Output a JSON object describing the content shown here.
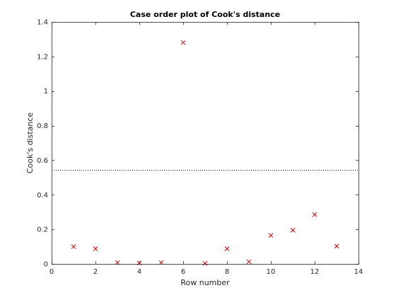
{
  "chart_data": {
    "type": "scatter",
    "title": "Case order plot of Cook's distance",
    "xlabel": "Row number",
    "ylabel": "Cook's distance",
    "xlim": [
      0,
      14
    ],
    "ylim": [
      0,
      1.4
    ],
    "xticks": [
      0,
      2,
      4,
      6,
      8,
      10,
      12,
      14
    ],
    "yticks": [
      0,
      0.2,
      0.4,
      0.6,
      0.8,
      1,
      1.2,
      1.4
    ],
    "xtick_labels": [
      "0",
      "2",
      "4",
      "6",
      "8",
      "10",
      "12",
      "14"
    ],
    "ytick_labels": [
      "0",
      "0.2",
      "0.4",
      "0.6",
      "0.8",
      "1",
      "1.2",
      "1.4"
    ],
    "grid": false,
    "marker": "x",
    "marker_color": "#cc0000",
    "threshold": 0.545,
    "threshold_style": "dotted",
    "series": [
      {
        "x": [
          1,
          2,
          3,
          4,
          5,
          6,
          7,
          8,
          9,
          10,
          11,
          12,
          13
        ],
        "y": [
          0.1,
          0.088,
          0.008,
          0.005,
          0.008,
          1.28,
          0.003,
          0.088,
          0.013,
          0.165,
          0.195,
          0.285,
          0.103
        ]
      }
    ]
  }
}
